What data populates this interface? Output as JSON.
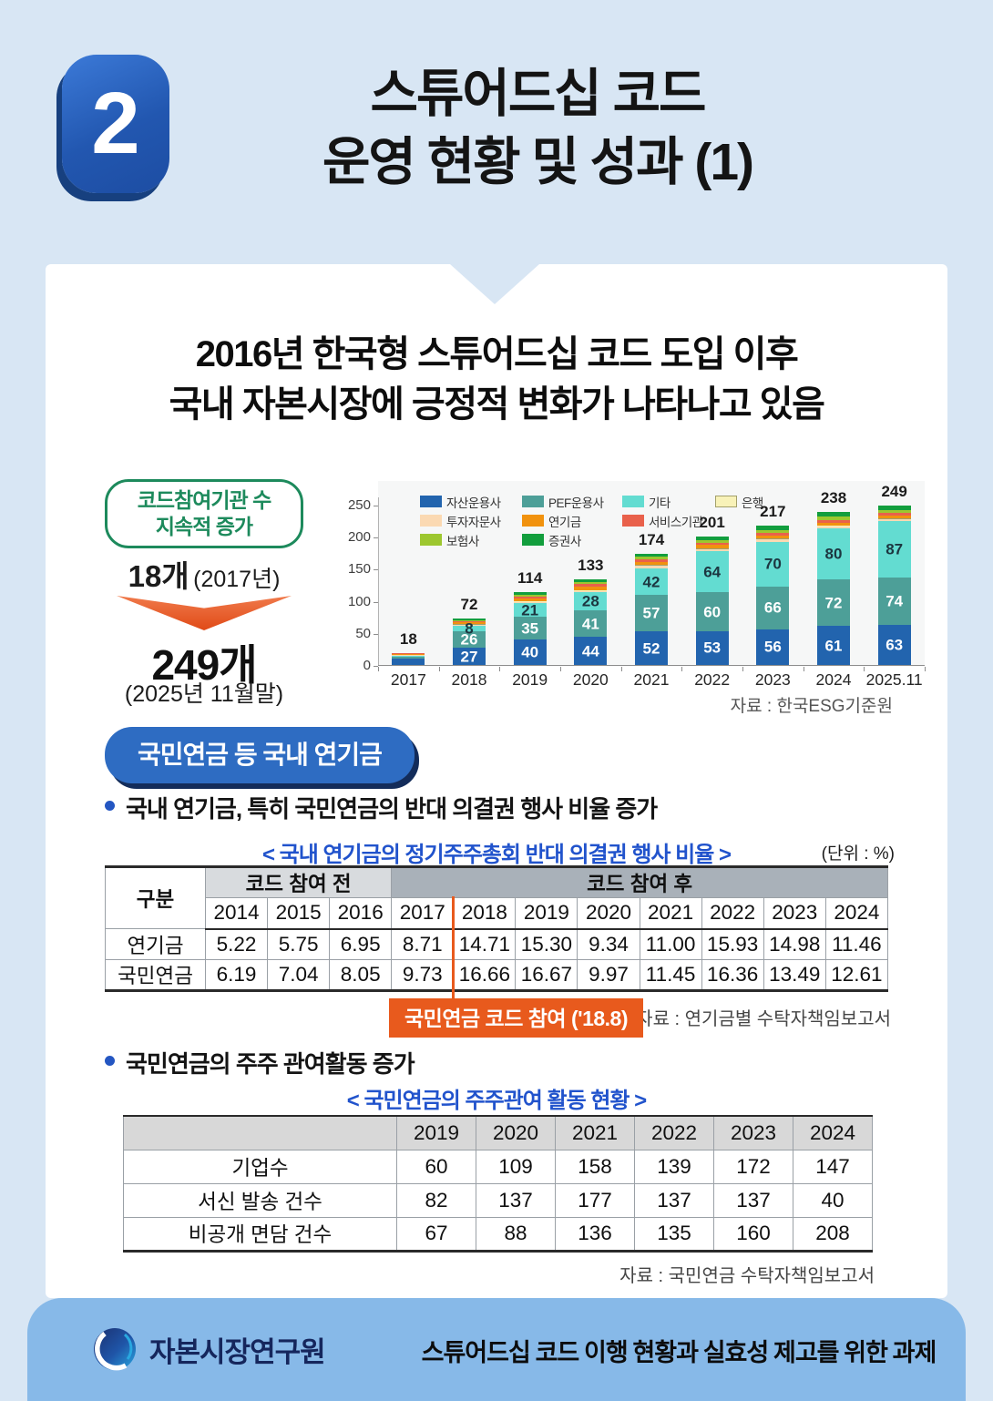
{
  "header": {
    "badge": "2",
    "title_line1": "스튜어드십 코드",
    "title_line2": "운영 현황 및 성과 (1)"
  },
  "headline": {
    "line1": "2016년 한국형 스튜어드십 코드 도입 이후",
    "line2": "국내 자본시장에 긍정적 변화가 나타나고 있음"
  },
  "highlight": {
    "title_line1": "코드참여기관 수",
    "title_line2": "지속적 증가",
    "before_value": "18개",
    "before_note": "(2017년)",
    "after_value": "249개",
    "after_note": "(2025년 11월말)"
  },
  "chart_data": {
    "type": "bar",
    "stacked": true,
    "categories": [
      "2017",
      "2018",
      "2019",
      "2020",
      "2021",
      "2022",
      "2023",
      "2024",
      "2025.11"
    ],
    "totals": [
      18,
      72,
      114,
      133,
      174,
      201,
      217,
      238,
      249
    ],
    "series": [
      {
        "name": "자산운용사",
        "color": "#2264ae",
        "label_color": "#ffffff",
        "show_labels_from": 1,
        "values": [
          10,
          27,
          40,
          44,
          52,
          53,
          56,
          61,
          63
        ]
      },
      {
        "name": "PEF운용사",
        "color": "#4d9f98",
        "label_color": "#ffffff",
        "show_labels_from": 1,
        "values": [
          3,
          26,
          35,
          41,
          57,
          60,
          66,
          72,
          74
        ]
      },
      {
        "name": "기타",
        "color": "#63dcd1",
        "label_color": "#1c3640",
        "show_labels_from": 1,
        "values": [
          2,
          8,
          21,
          28,
          42,
          64,
          70,
          80,
          87
        ]
      },
      {
        "name": "투자자문사",
        "color": "#fbd9b2",
        "values": [
          1,
          2,
          3,
          3,
          4,
          4,
          4,
          4,
          4
        ]
      },
      {
        "name": "은행",
        "color": "#f8f2b8",
        "border": "#a3a06b",
        "values": [
          0,
          1,
          1,
          1,
          1,
          1,
          1,
          1,
          1
        ]
      },
      {
        "name": "연기금",
        "color": "#f1920e",
        "values": [
          1,
          3,
          4,
          5,
          5,
          5,
          5,
          4,
          4
        ]
      },
      {
        "name": "서비스기관",
        "color": "#e9614b",
        "values": [
          1,
          2,
          3,
          4,
          4,
          4,
          4,
          4,
          4
        ]
      },
      {
        "name": "보험사",
        "color": "#9dc72f",
        "values": [
          0,
          1,
          3,
          3,
          4,
          4,
          5,
          5,
          5
        ]
      },
      {
        "name": "증권사",
        "color": "#129e3d",
        "values": [
          0,
          2,
          4,
          4,
          5,
          6,
          6,
          7,
          7
        ]
      }
    ],
    "legend_rows": [
      [
        "자산운용사",
        "PEF운용사",
        "기타",
        "은행"
      ],
      [
        "투자자문사",
        "연기금",
        "서비스기관"
      ],
      [
        "보험사",
        "증권사"
      ]
    ],
    "ylim": [
      0,
      250
    ],
    "yticks": [
      0,
      50,
      100,
      150,
      200,
      250
    ],
    "grid": false,
    "legend_position": "top-left-inside",
    "source": "자료 : 한국ESG기준원"
  },
  "section_pill": "국민연금 등 국내 연기금",
  "bullet1": "국내 연기금, 특히 국민연금의 반대 의결권 행사 비율 증가",
  "table1": {
    "caption": "<  국내 연기금의 정기주주총회 반대 의결권 행사 비율  >",
    "unit": "(단위 : %)",
    "corner_label": "구분",
    "group_before": "코드 참여 전",
    "group_after": "코드 참여 후",
    "years": [
      "2014",
      "2015",
      "2016",
      "2017",
      "2018",
      "2019",
      "2020",
      "2021",
      "2022",
      "2023",
      "2024"
    ],
    "rows": [
      {
        "label": "연기금",
        "values": [
          "5.22",
          "5.75",
          "6.95",
          "8.71",
          "14.71",
          "15.30",
          "9.34",
          "11.00",
          "15.93",
          "14.98",
          "11.46"
        ]
      },
      {
        "label": "국민연금",
        "values": [
          "6.19",
          "7.04",
          "8.05",
          "9.73",
          "16.66",
          "16.67",
          "9.97",
          "11.45",
          "16.36",
          "13.49",
          "12.61"
        ]
      }
    ],
    "callout": "국민연금 코드 참여 ('18.8)",
    "source": "자료 : 연기금별 수탁자책임보고서"
  },
  "bullet2": "국민연금의 주주 관여활동 증가",
  "table2": {
    "caption": "<  국민연금의 주주관여 활동 현황  >",
    "years": [
      "2019",
      "2020",
      "2021",
      "2022",
      "2023",
      "2024"
    ],
    "rows": [
      {
        "label": "기업수",
        "values": [
          "60",
          "109",
          "158",
          "139",
          "172",
          "147"
        ]
      },
      {
        "label": "서신 발송 건수",
        "values": [
          "82",
          "137",
          "177",
          "137",
          "137",
          "40"
        ]
      },
      {
        "label": "비공개 면담 건수",
        "values": [
          "67",
          "88",
          "136",
          "135",
          "160",
          "208"
        ]
      }
    ],
    "source": "자료 : 국민연금 수탁자책임보고서"
  },
  "footer": {
    "org": "자본시장연구원",
    "doc_title": "스튜어드십 코드 이행 현황과 실효성 제고를 위한 과제"
  },
  "colors": {
    "page_bg": "#d8e6f4",
    "card_bg": "#ffffff",
    "badge_blue": "#2257b0",
    "pill_blue": "#2e6cc2",
    "caption_blue": "#2153cc",
    "green_accent": "#1d8a5c",
    "red_accent": "#e85a1d",
    "footer_bg": "#87b9e8"
  }
}
